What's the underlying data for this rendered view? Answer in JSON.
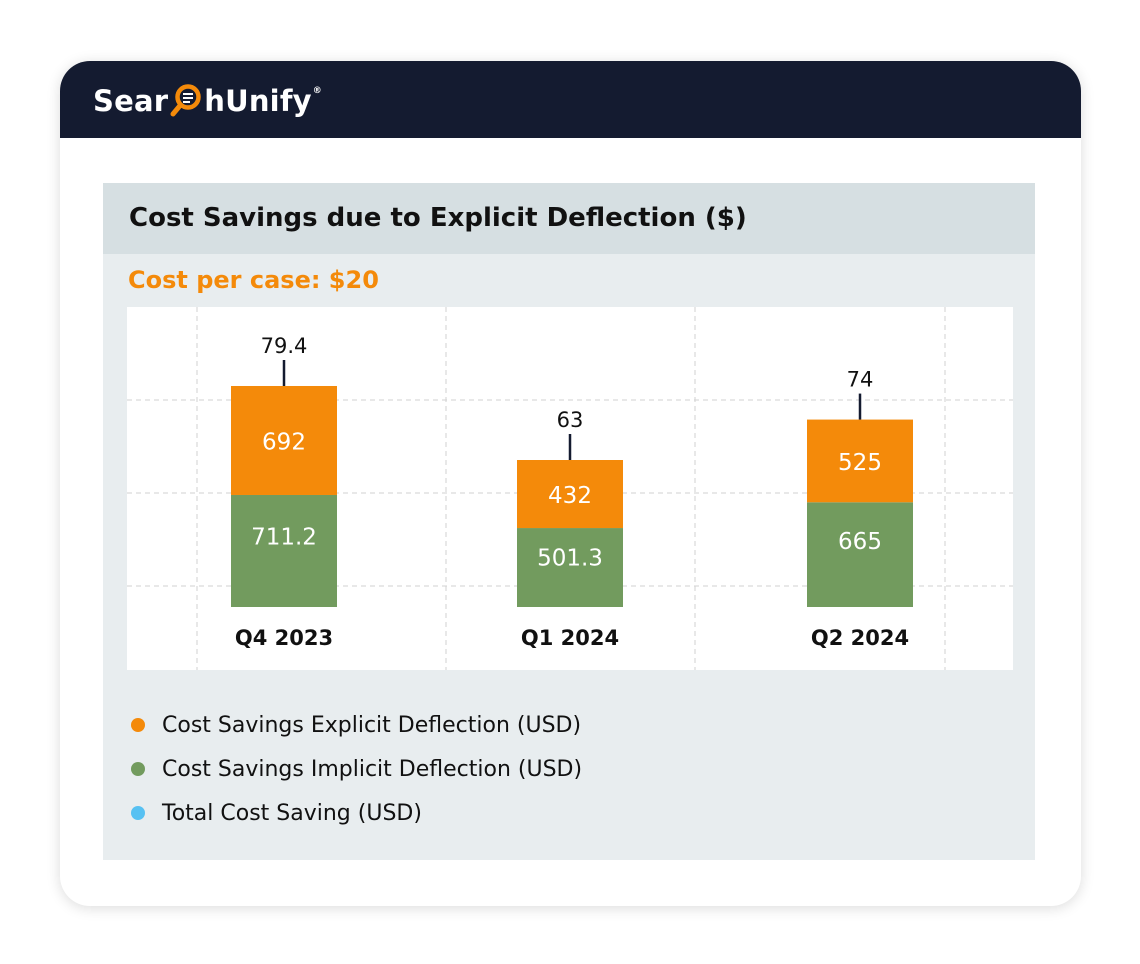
{
  "brand": {
    "name_before": "Sear",
    "name_after": "hUnify",
    "trademark": "®"
  },
  "panel": {
    "title": "Cost Savings due to Explicit Deflection ($)",
    "subtitle": "Cost per case: $20"
  },
  "colors": {
    "header_bg": "#141b30",
    "explicit": "#f48a0a",
    "implicit": "#729b5e",
    "total": "#57c1f2",
    "accent": "#f48a0a"
  },
  "chart_data": {
    "type": "bar",
    "stacked": true,
    "categories": [
      "Q4 2023",
      "Q1 2024",
      "Q2 2024"
    ],
    "series": [
      {
        "name": "Cost Savings Implicit Deflection (USD)",
        "values": [
          711.2,
          501.3,
          665
        ],
        "color": "#729b5e"
      },
      {
        "name": "Cost Savings Explicit Deflection (USD)",
        "values": [
          692,
          432,
          525
        ],
        "color": "#f48a0a"
      },
      {
        "name": "Total Cost Saving (USD)",
        "values": [
          79.4,
          63,
          74
        ],
        "color": "#57c1f2"
      }
    ],
    "grid": true,
    "legend_position": "bottom-left",
    "title": "Cost Savings due to Explicit Deflection ($)",
    "xlabel": "",
    "ylabel": ""
  },
  "legend": [
    {
      "label": "Cost Savings Explicit Deflection (USD)",
      "color": "#f48a0a"
    },
    {
      "label": "Cost Savings Implicit Deflection (USD)",
      "color": "#729b5e"
    },
    {
      "label": "Total Cost Saving (USD)",
      "color": "#57c1f2"
    }
  ]
}
